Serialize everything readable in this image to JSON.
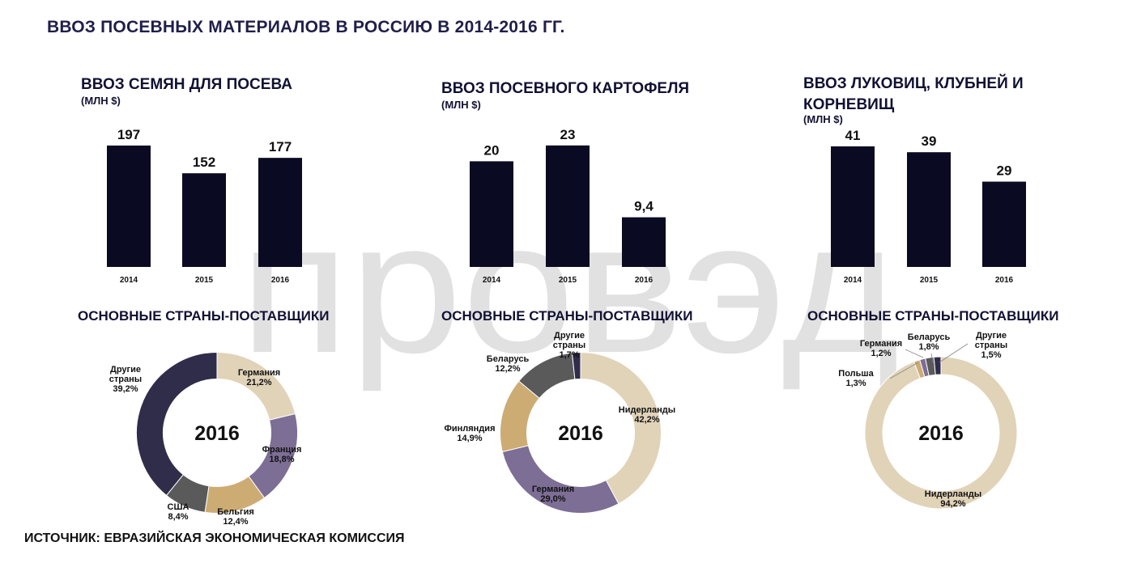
{
  "title": "ВВОЗ ПОСЕВНЫХ МАТЕРИАЛОВ В РОССИЮ В 2014-2016 ГГ.",
  "watermark": "провэд",
  "source": "ИСТОЧНИК: ЕВРАЗИЙСКАЯ ЭКОНОМИЧЕСКАЯ КОМИССИЯ",
  "colors": {
    "bar": "#0b0a23",
    "dark": "#2f2d4a",
    "beige": "#e1d3b8",
    "purple": "#7d6e96",
    "gray": "#5a5a5a",
    "tan": "#cdac74",
    "text": "#111133"
  },
  "chart_data": [
    {
      "type": "bar",
      "title": "ВВОЗ СЕМЯН ДЛЯ ПОСЕВА",
      "unit": "(МЛН $)",
      "categories": [
        "2014",
        "2015",
        "2016"
      ],
      "values": [
        197,
        152,
        177
      ],
      "value_labels": [
        "197",
        "152",
        "177"
      ],
      "ylim": [
        0,
        210
      ]
    },
    {
      "type": "bar",
      "title": "ВВОЗ ПОСЕВНОГО КАРТОФЕЛЯ",
      "unit": "(МЛН $)",
      "categories": [
        "2014",
        "2015",
        "2016"
      ],
      "values": [
        20,
        23,
        9.4
      ],
      "value_labels": [
        "20",
        "23",
        "9,4"
      ],
      "ylim": [
        0,
        24.5
      ]
    },
    {
      "type": "bar",
      "title": "ВВОЗ ЛУКОВИЦ, КЛУБНЕЙ И КОРНЕВИЩ",
      "unit": "(МЛН $)",
      "categories": [
        "2014",
        "2015",
        "2016"
      ],
      "values": [
        41,
        39,
        29
      ],
      "value_labels": [
        "41",
        "39",
        "29"
      ],
      "ylim": [
        0,
        44
      ]
    },
    {
      "type": "pie",
      "title": "ОСНОВНЫЕ СТРАНЫ-ПОСТАВЩИКИ",
      "center_label": "2016",
      "slices": [
        {
          "name": "Германия",
          "value": 21.2,
          "label": "21,2%",
          "color": "#e1d3b8"
        },
        {
          "name": "Франция",
          "value": 18.8,
          "label": "18,8%",
          "color": "#7d6e96"
        },
        {
          "name": "Бельгия",
          "value": 12.4,
          "label": "12,4%",
          "color": "#cdac74"
        },
        {
          "name": "США",
          "value": 8.4,
          "label": "8,4%",
          "color": "#5a5a5a"
        },
        {
          "name": "Другие страны",
          "value": 39.2,
          "label": "39,2%",
          "color": "#2f2d4a"
        }
      ]
    },
    {
      "type": "pie",
      "title": "ОСНОВНЫЕ СТРАНЫ-ПОСТАВЩИКИ",
      "center_label": "2016",
      "slices": [
        {
          "name": "Нидерланды",
          "value": 42.2,
          "label": "42,2%",
          "color": "#e1d3b8"
        },
        {
          "name": "Германия",
          "value": 29.0,
          "label": "29,0%",
          "color": "#7d6e96"
        },
        {
          "name": "Финляндия",
          "value": 14.9,
          "label": "14,9%",
          "color": "#cdac74"
        },
        {
          "name": "Беларусь",
          "value": 12.2,
          "label": "12,2%",
          "color": "#5a5a5a"
        },
        {
          "name": "Другие страны",
          "value": 1.7,
          "label": "1,7%",
          "color": "#2f2d4a"
        }
      ]
    },
    {
      "type": "pie",
      "title": "ОСНОВНЫЕ СТРАНЫ-ПОСТАВЩИКИ",
      "center_label": "2016",
      "slices": [
        {
          "name": "Нидерланды",
          "value": 94.2,
          "label": "94,2%",
          "color": "#e1d3b8"
        },
        {
          "name": "Польша",
          "value": 1.3,
          "label": "1,3%",
          "color": "#cdac74"
        },
        {
          "name": "Германия",
          "value": 1.2,
          "label": "1,2%",
          "color": "#7d6e96"
        },
        {
          "name": "Беларусь",
          "value": 1.8,
          "label": "1,8%",
          "color": "#5a5a5a"
        },
        {
          "name": "Другие страны",
          "value": 1.5,
          "label": "1,5%",
          "color": "#2f2d4a"
        }
      ]
    }
  ]
}
